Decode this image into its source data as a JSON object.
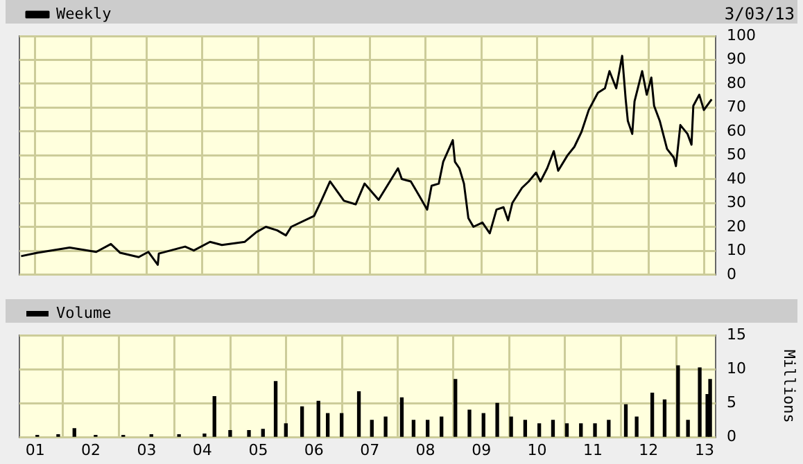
{
  "chart_data": [
    {
      "type": "line",
      "annotations": [
        "3/03/13"
      ],
      "legend": "top left",
      "grid": true,
      "tick_labels": "y",
      "marker": "none",
      "xlim": [
        "2000-09-20",
        "2013-03-15"
      ],
      "ylim": [
        0,
        100
      ],
      "yticks": [
        0,
        10,
        20,
        30,
        40,
        50,
        60,
        70,
        80,
        90,
        100
      ],
      "xticks": [
        {
          "value": "2001-01-01",
          "label": null
        },
        {
          "value": "2002-01-01",
          "label": null
        },
        {
          "value": "2003-01-01",
          "label": null
        },
        {
          "value": "2004-01-01",
          "label": null
        },
        {
          "value": "2005-01-01",
          "label": null
        },
        {
          "value": "2006-01-01",
          "label": null
        },
        {
          "value": "2007-01-01",
          "label": null
        },
        {
          "value": "2008-01-01",
          "label": null
        },
        {
          "value": "2009-01-01",
          "label": null
        },
        {
          "value": "2010-01-01",
          "label": null
        },
        {
          "value": "2011-01-01",
          "label": null
        },
        {
          "value": "2012-01-01",
          "label": null
        },
        {
          "value": "2013-01-01",
          "label": null
        }
      ],
      "x": [
        "2000-10-01",
        "2001-01-15",
        "2001-08-15",
        "2002-02-05",
        "2002-05-12",
        "2002-07-12",
        "2002-11-10",
        "2003-01-12",
        "2003-03-15",
        "2003-03-22",
        "2003-09-10",
        "2003-11-06",
        "2004-02-20",
        "2004-05-08",
        "2004-10-05",
        "2004-12-20",
        "2005-02-20",
        "2005-05-05",
        "2005-07-01",
        "2005-08-05",
        "2006-01-01",
        "2006-02-18",
        "2006-04-16",
        "2006-07-16",
        "2006-10-01",
        "2006-11-28",
        "2007-02-28",
        "2007-07-05",
        "2007-07-30",
        "2007-09-27",
        "2007-11-24",
        "2008-01-12",
        "2008-02-10",
        "2008-03-28",
        "2008-04-26",
        "2008-06-28",
        "2008-07-12",
        "2008-08-10",
        "2008-09-09",
        "2008-10-08",
        "2008-11-10",
        "2009-01-08",
        "2009-02-25",
        "2009-04-10",
        "2009-05-26",
        "2009-06-25",
        "2009-07-23",
        "2009-09-24",
        "2009-11-07",
        "2009-12-25",
        "2010-01-23",
        "2010-03-08",
        "2010-04-20",
        "2010-05-19",
        "2010-07-19",
        "2010-09-02",
        "2010-10-19",
        "2010-12-05",
        "2011-02-03",
        "2011-03-21",
        "2011-04-20",
        "2011-06-03",
        "2011-07-12",
        "2011-08-04",
        "2011-08-18",
        "2011-09-16",
        "2011-10-01",
        "2011-11-20",
        "2011-12-20",
        "2012-01-19",
        "2012-02-06",
        "2012-03-14",
        "2012-05-01",
        "2012-06-14",
        "2012-06-28",
        "2012-07-27",
        "2012-09-12",
        "2012-10-08",
        "2012-10-20",
        "2012-11-28",
        "2012-12-28",
        "2013-02-17"
      ],
      "series": [
        {
          "name": "Weekly",
          "color": "#000000",
          "values": [
            7.8,
            9.2,
            11.4,
            9.6,
            12.9,
            9.2,
            7.4,
            9.6,
            4.2,
            8.9,
            11.8,
            10.2,
            13.8,
            12.5,
            13.8,
            17.9,
            20.1,
            18.6,
            16.5,
            20.1,
            24.6,
            31,
            39.1,
            31,
            29.5,
            38.2,
            31.4,
            44.6,
            40.1,
            39.1,
            32.8,
            27.3,
            37.3,
            38.2,
            47.3,
            56.4,
            47.3,
            44.6,
            38.2,
            23.7,
            20.1,
            21.9,
            17.4,
            27.3,
            28.3,
            22.8,
            30.1,
            36.4,
            39.1,
            42.8,
            39.1,
            44.6,
            51.8,
            43.6,
            50,
            53.6,
            59.9,
            69,
            76.2,
            78.1,
            85.3,
            78.1,
            91.7,
            73.5,
            64.5,
            59,
            72.6,
            85.3,
            75.4,
            82.6,
            70.8,
            64.5,
            52.7,
            49.1,
            45.5,
            62.7,
            59,
            54.5,
            70.8,
            75.4,
            69,
            73.5
          ]
        }
      ]
    },
    {
      "type": "bar",
      "ylabel": "Millions",
      "legend": "top left",
      "grid": true,
      "xlim": [
        "2000-09-20",
        "2013-03-15"
      ],
      "ylim": [
        0,
        15
      ],
      "yticks": [
        0,
        5,
        10,
        15
      ],
      "xticks": [
        {
          "value": "2001-01-01",
          "label": "01"
        },
        {
          "value": "2002-01-01",
          "label": "02"
        },
        {
          "value": "2003-01-01",
          "label": "03"
        },
        {
          "value": "2004-01-01",
          "label": "04"
        },
        {
          "value": "2005-01-01",
          "label": "05"
        },
        {
          "value": "2006-01-01",
          "label": "06"
        },
        {
          "value": "2007-01-01",
          "label": "07"
        },
        {
          "value": "2008-01-01",
          "label": "08"
        },
        {
          "value": "2009-01-01",
          "label": "09"
        },
        {
          "value": "2010-01-01",
          "label": "10"
        },
        {
          "value": "2011-01-01",
          "label": "11"
        },
        {
          "value": "2012-01-01",
          "label": "12"
        },
        {
          "value": "2013-01-01",
          "label": "13"
        }
      ],
      "x": [
        "2001-01-15",
        "2001-06-01",
        "2001-09-15",
        "2002-02-01",
        "2002-08-01",
        "2003-02-01",
        "2003-08-01",
        "2004-01-15",
        "2004-03-20",
        "2004-07-01",
        "2004-11-01",
        "2005-02-01",
        "2005-04-25",
        "2005-07-01",
        "2005-10-15",
        "2006-01-30",
        "2006-04-01",
        "2006-07-01",
        "2006-10-22",
        "2007-01-15",
        "2007-04-15",
        "2007-07-30",
        "2007-10-15",
        "2008-01-15",
        "2008-04-15",
        "2008-07-15",
        "2008-10-15",
        "2009-01-15",
        "2009-04-15",
        "2009-07-15",
        "2009-10-15",
        "2010-01-15",
        "2010-04-15",
        "2010-07-15",
        "2010-10-15",
        "2011-01-15",
        "2011-04-15",
        "2011-08-05",
        "2011-10-15",
        "2012-01-25",
        "2012-04-15",
        "2012-07-12",
        "2012-09-15",
        "2012-12-01",
        "2013-01-20",
        "2013-02-07"
      ],
      "series": [
        {
          "name": "Volume",
          "color": "#000000",
          "values": [
            0.3,
            0.4,
            1.3,
            0.3,
            0.3,
            0.4,
            0.4,
            0.5,
            6,
            1,
            1,
            1.2,
            8.2,
            2,
            4.5,
            5.3,
            3.5,
            3.5,
            6.7,
            2.5,
            3,
            5.8,
            2.5,
            2.5,
            3,
            8.5,
            4,
            3.5,
            5,
            3,
            2.5,
            2,
            2.5,
            2,
            2,
            2,
            2.5,
            4.8,
            3,
            6.5,
            5.5,
            10.5,
            2.5,
            10.2,
            6.3,
            8.5
          ]
        }
      ]
    }
  ]
}
